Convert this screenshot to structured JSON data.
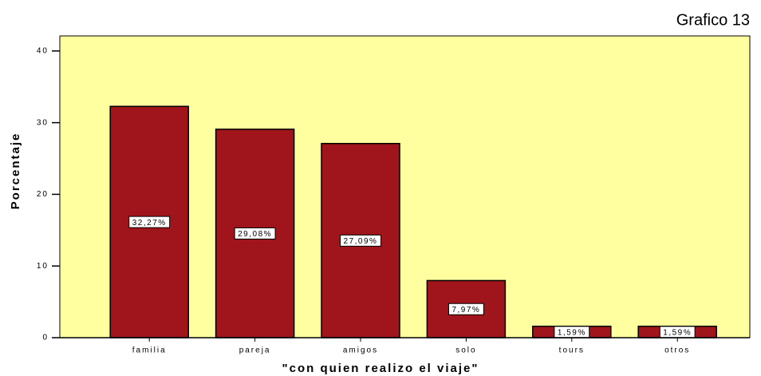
{
  "chart_data": {
    "type": "bar",
    "title": "Grafico 13",
    "x_label": "\"con quien realizo el viaje\"",
    "y_label": "Porcentaje",
    "categories": [
      "familia",
      "pareja",
      "amigos",
      "solo",
      "tours",
      "otros"
    ],
    "values": [
      32.27,
      29.08,
      27.09,
      7.97,
      1.59,
      1.59
    ],
    "value_labels": [
      "32,27%",
      "29,08%",
      "27,09%",
      "7,97%",
      "1,59%",
      "1,59%"
    ],
    "color": "#a0151c",
    "background": "#ffff9f",
    "ylim": [
      0,
      42.1
    ],
    "yticks": [
      0,
      10,
      20,
      30,
      40
    ]
  }
}
